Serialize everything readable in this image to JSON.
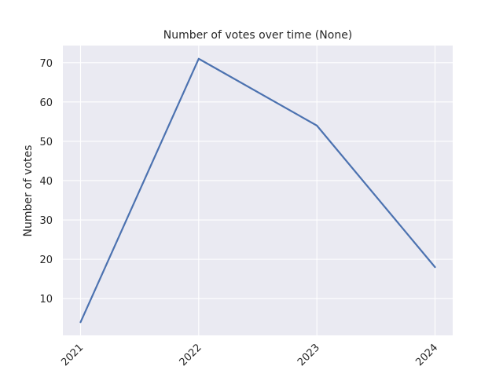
{
  "chart_data": {
    "type": "line",
    "title": "Number of votes over time (None)",
    "xlabel": "",
    "ylabel": "Number of votes",
    "x": [
      "2021",
      "2022",
      "2023",
      "2024"
    ],
    "series": [
      {
        "values": [
          4,
          71,
          54,
          18
        ],
        "color": "#4c72b0"
      }
    ],
    "ylim": [
      0.65,
      74.35
    ],
    "yticks": [
      "10",
      "20",
      "30",
      "40",
      "50",
      "60",
      "70"
    ],
    "grid": true
  },
  "colors": {
    "plot_background": "#eaeaf2",
    "grid": "#ffffff",
    "text": "#262626"
  }
}
